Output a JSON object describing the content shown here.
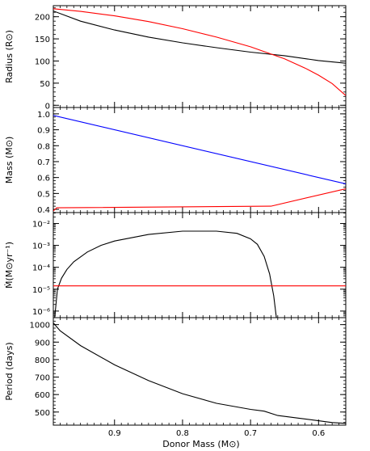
{
  "chart_data": {
    "type": "line",
    "xlabel": "Donor Mass (M⊙)",
    "x_ticks": [
      0.9,
      0.8,
      0.7,
      0.6
    ],
    "x_tick_labels": [
      "0.9",
      "0.8",
      "0.7",
      "0.6"
    ],
    "xlim": [
      0.99,
      0.56
    ],
    "panels": [
      {
        "name": "radius",
        "ylabel": "Radius (R⊙)",
        "ylim": [
          -5,
          225
        ],
        "yscale": "linear",
        "y_ticks": [
          0,
          50,
          100,
          150,
          200
        ],
        "y_tick_labels": [
          "0",
          "50",
          "100",
          "150",
          "200"
        ],
        "series": [
          {
            "color": "#000000",
            "x": [
              0.99,
              0.95,
              0.9,
              0.85,
              0.8,
              0.75,
              0.7,
              0.65,
              0.6,
              0.56
            ],
            "values": [
              213,
              190,
              170,
              154,
              141,
              130,
              120,
              112,
              101,
              95
            ]
          },
          {
            "color": "#ff0000",
            "x": [
              0.99,
              0.95,
              0.9,
              0.85,
              0.8,
              0.75,
              0.7,
              0.65,
              0.62,
              0.6,
              0.58,
              0.56
            ],
            "values": [
              218,
              212,
              202,
              189,
              173,
              154,
              132,
              105,
              84,
              68,
              49,
              22
            ]
          }
        ]
      },
      {
        "name": "mass",
        "ylabel": "Mass (M⊙)",
        "ylim": [
          0.38,
          1.04
        ],
        "yscale": "linear",
        "y_ticks": [
          0.4,
          0.5,
          0.6,
          0.7,
          0.8,
          0.9,
          1.0
        ],
        "y_tick_labels": [
          "0.4",
          "0.5",
          "0.6",
          "0.7",
          "0.8",
          "0.9",
          "1.0"
        ],
        "series": [
          {
            "color": "#0000ff",
            "x": [
              0.99,
              0.56
            ],
            "values": [
              0.99,
              0.56
            ]
          },
          {
            "color": "#ff0000",
            "x": [
              0.99,
              0.985,
              0.67,
              0.56
            ],
            "values": [
              0.39,
              0.41,
              0.42,
              0.53
            ]
          }
        ]
      },
      {
        "name": "mdot",
        "ylabel": "Ṁ(M⊙yr⁻¹)",
        "ylim": [
          -6.3,
          -1.5
        ],
        "yscale": "log",
        "y_ticks": [
          -6,
          -5,
          -4,
          -3,
          -2
        ],
        "y_tick_labels": [
          "10⁻⁶",
          "10⁻⁵",
          "10⁻⁴",
          "10⁻³",
          "10⁻²"
        ],
        "series": [
          {
            "color": "#000000",
            "x": [
              0.988,
              0.984,
              0.978,
              0.97,
              0.96,
              0.94,
              0.92,
              0.9,
              0.85,
              0.8,
              0.75,
              0.72,
              0.7,
              0.69,
              0.68,
              0.672,
              0.666,
              0.662
            ],
            "values": [
              -6.3,
              -5.0,
              -4.5,
              -4.1,
              -3.75,
              -3.3,
              -3.0,
              -2.8,
              -2.5,
              -2.35,
              -2.35,
              -2.45,
              -2.7,
              -2.95,
              -3.5,
              -4.3,
              -5.3,
              -6.3
            ]
          },
          {
            "color": "#ff0000",
            "x": [
              0.99,
              0.56
            ],
            "values": [
              -4.85,
              -4.85
            ]
          }
        ]
      },
      {
        "name": "period",
        "ylabel": "Period (days)",
        "ylim": [
          425,
          1040
        ],
        "yscale": "linear",
        "y_ticks": [
          500,
          600,
          700,
          800,
          900,
          1000
        ],
        "y_tick_labels": [
          "500",
          "600",
          "700",
          "800",
          "900",
          "1000"
        ],
        "series": [
          {
            "color": "#000000",
            "x": [
              0.99,
              0.98,
              0.95,
              0.9,
              0.85,
              0.8,
              0.75,
              0.7,
              0.68,
              0.66,
              0.63,
              0.6,
              0.58,
              0.56
            ],
            "values": [
              1010,
              965,
              880,
              770,
              680,
              605,
              550,
              515,
              505,
              480,
              465,
              450,
              440,
              435
            ]
          }
        ]
      }
    ]
  }
}
